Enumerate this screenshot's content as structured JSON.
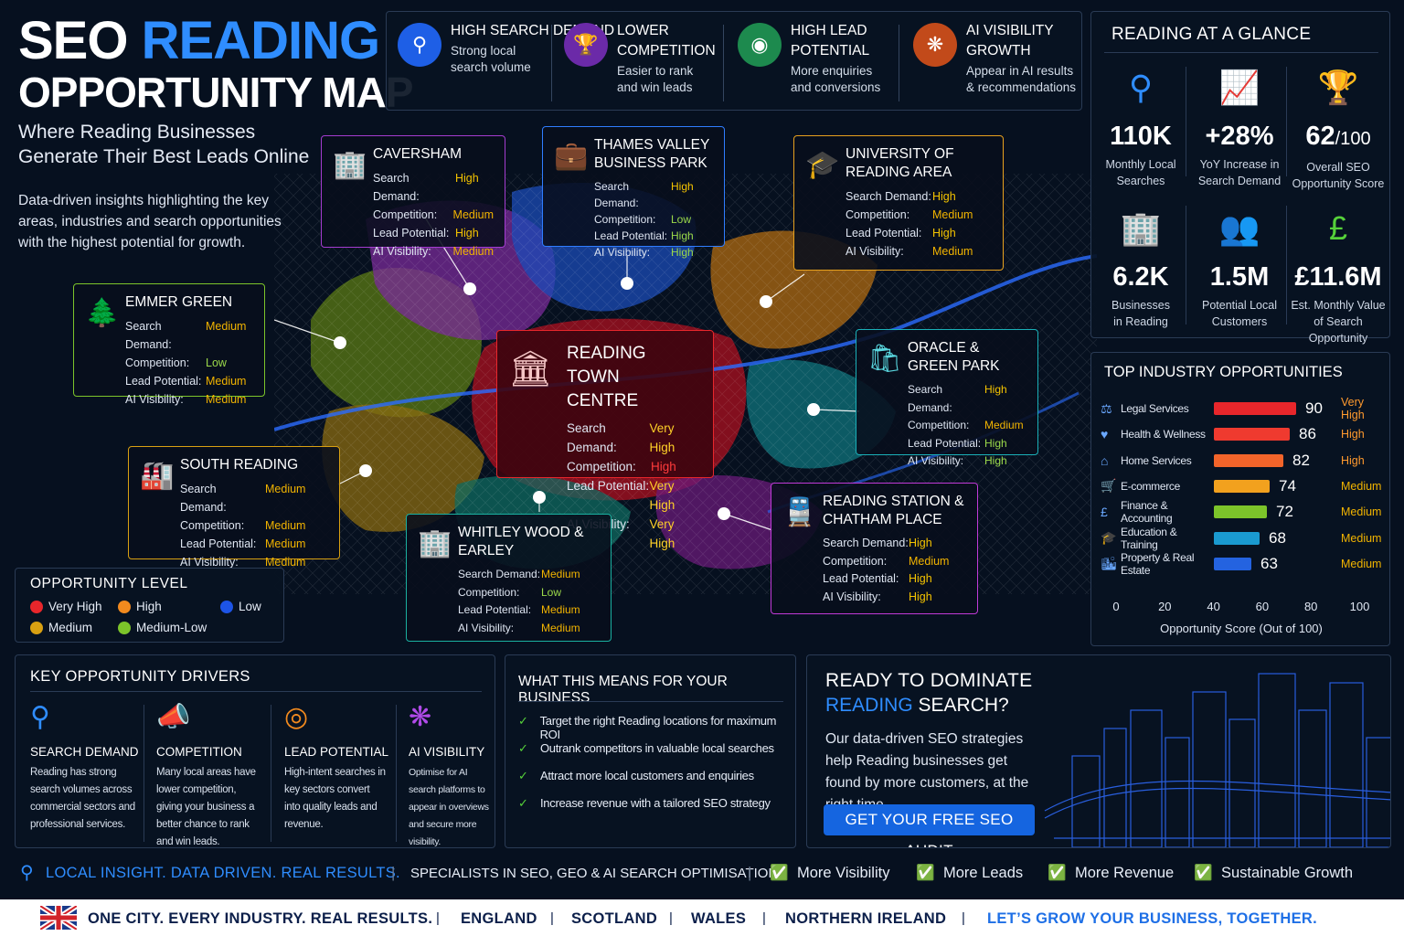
{
  "header": {
    "title_a": "SEO ",
    "title_b": "READING",
    "title_line2": "OPPORTUNITY MAP",
    "subtitle": "Where Reading Businesses Generate Their Best Leads Online",
    "intro": "Data-driven insights highlighting the key areas, industries and search opportunities with the highest potential for growth."
  },
  "features": [
    {
      "title": "HIGH SEARCH DEMAND",
      "desc": "Strong local search volume",
      "icon": "search-chart-icon",
      "color": "#1e5fe6"
    },
    {
      "title": "LOWER COMPETITION",
      "desc": "Easier to rank and win leads",
      "icon": "trophy-icon",
      "color": "#6b2aa8"
    },
    {
      "title": "HIGH LEAD POTENTIAL",
      "desc": "More enquiries and conversions",
      "icon": "target-icon",
      "color": "#1d8a4e"
    },
    {
      "title": "AI VISIBILITY GROWTH",
      "desc": "Appear in AI results & recommendations",
      "icon": "brain-icon",
      "color": "#c24a1a"
    }
  ],
  "labels": {
    "search_demand": "Search Demand:",
    "competition": "Competition:",
    "lead_potential": "Lead Potential:",
    "ai_visibility": "AI Visibility:"
  },
  "areas": {
    "caversham": {
      "name": "CAVERSHAM",
      "icon": "buildings-icon",
      "demand": "High",
      "competition": "Medium",
      "lead": "High",
      "ai": "Medium"
    },
    "thames": {
      "name": "THAMES VALLEY BUSINESS PARK",
      "icon": "briefcase-icon",
      "demand": "High",
      "competition": "Low",
      "lead": "High",
      "ai": "High"
    },
    "university": {
      "name": "UNIVERSITY OF READING AREA",
      "icon": "graduation-cap-icon",
      "demand": "High",
      "competition": "Medium",
      "lead": "High",
      "ai": "Medium"
    },
    "emmer": {
      "name": "EMMER GREEN",
      "icon": "tree-icon",
      "demand": "Medium",
      "competition": "Low",
      "lead": "Medium",
      "ai": "Medium"
    },
    "town": {
      "name": "READING TOWN CENTRE",
      "icon": "town-hall-icon",
      "demand": "Very High",
      "competition": "High",
      "lead": "Very High",
      "ai": "Very High"
    },
    "oracle": {
      "name": "ORACLE & GREEN PARK",
      "icon": "shopping-bag-icon",
      "demand": "High",
      "competition": "Medium",
      "lead": "High",
      "ai": "High"
    },
    "south": {
      "name": "SOUTH READING",
      "icon": "factory-icon",
      "demand": "Medium",
      "competition": "Medium",
      "lead": "Medium",
      "ai": "Medium"
    },
    "whitley": {
      "name": "WHITLEY WOOD & EARLEY",
      "icon": "apartment-icon",
      "demand": "Medium",
      "competition": "Low",
      "lead": "Medium",
      "ai": "Medium"
    },
    "station": {
      "name": "READING STATION & CHATHAM PLACE",
      "icon": "train-icon",
      "demand": "High",
      "competition": "Medium",
      "lead": "High",
      "ai": "High"
    }
  },
  "glance": {
    "title": "READING AT A GLANCE",
    "stats": [
      {
        "value": "110K",
        "suffix": "",
        "label": "Monthly Local Searches",
        "icon": "search-icon"
      },
      {
        "value": "+28%",
        "suffix": "",
        "label": "YoY Increase in Search Demand",
        "icon": "growth-chart-icon"
      },
      {
        "value": "62",
        "suffix": "/100",
        "label": "Overall SEO Opportunity Score",
        "icon": "trophy-icon"
      },
      {
        "value": "6.2K",
        "suffix": "",
        "label": "Businesses in Reading",
        "icon": "office-building-icon"
      },
      {
        "value": "1.5M",
        "suffix": "",
        "label": "Potential Local Customers",
        "icon": "people-icon"
      },
      {
        "value": "£11.6M",
        "suffix": "",
        "label": "Est. Monthly Value of Search Opportunity",
        "icon": "pound-coin-icon"
      }
    ]
  },
  "industry": {
    "title": "TOP INDUSTRY OPPORTUNITIES",
    "axis_label": "Opportunity Score (Out of 100)",
    "ticks": [
      "0",
      "20",
      "40",
      "60",
      "80",
      "100"
    ],
    "items": [
      {
        "label": "Legal Services",
        "score": 90,
        "rating": "Very High",
        "color": "#e8262b",
        "rcolor": "#ff9a2e",
        "icon": "scales-icon"
      },
      {
        "label": "Health & Wellness",
        "score": 86,
        "rating": "High",
        "color": "#ef3a2f",
        "rcolor": "#ff9a2e",
        "icon": "heart-icon"
      },
      {
        "label": "Home Services",
        "score": 82,
        "rating": "High",
        "color": "#f2642a",
        "rcolor": "#ff9a2e",
        "icon": "house-icon"
      },
      {
        "label": "E-commerce",
        "score": 74,
        "rating": "Medium",
        "color": "#f2a11e",
        "rcolor": "#f2b400",
        "icon": "cart-icon"
      },
      {
        "label": "Finance & Accounting",
        "score": 72,
        "rating": "Medium",
        "color": "#7cc42a",
        "rcolor": "#f2b400",
        "icon": "pound-icon"
      },
      {
        "label": "Education & Training",
        "score": 68,
        "rating": "Medium",
        "color": "#1a9ad0",
        "rcolor": "#f2b400",
        "icon": "graduation-cap-icon"
      },
      {
        "label": "Property & Real Estate",
        "score": 63,
        "rating": "Medium",
        "color": "#2463e0",
        "rcolor": "#f2b400",
        "icon": "city-icon"
      }
    ]
  },
  "legend": {
    "title": "OPPORTUNITY LEVEL",
    "items": [
      {
        "label": "Very High",
        "color": "#e8262b"
      },
      {
        "label": "High",
        "color": "#f28a1e"
      },
      {
        "label": "Low",
        "color": "#1d54e6"
      },
      {
        "label": "Medium",
        "color": "#d8a012"
      },
      {
        "label": "Medium-Low",
        "color": "#7cc42a"
      }
    ]
  },
  "drivers": {
    "title": "KEY OPPORTUNITY DRIVERS",
    "items": [
      {
        "title": "SEARCH DEMAND",
        "desc": "Reading has strong search volumes across commercial sectors and professional services.",
        "icon": "search-icon",
        "color": "#2f8dff"
      },
      {
        "title": "COMPETITION",
        "desc": "Many local areas have lower competition, giving your business a better chance to rank and win leads.",
        "icon": "megaphone-icon",
        "color": "#56d13a"
      },
      {
        "title": "LEAD POTENTIAL",
        "desc": "High-intent searches in key sectors convert into quality leads and revenue.",
        "icon": "target-icon",
        "color": "#f28a1e"
      },
      {
        "title": "AI VISIBILITY",
        "desc": "Optimise for AI search platforms to appear in overviews and secure more visibility.",
        "icon": "brain-icon",
        "color": "#b04ae8"
      }
    ]
  },
  "means": {
    "title": "WHAT THIS MEANS FOR YOUR BUSINESS",
    "items": [
      "Target the right Reading locations for maximum ROI",
      "Outrank competitors in valuable local searches",
      "Attract more local customers and enquiries",
      "Increase revenue with a tailored SEO strategy"
    ]
  },
  "cta": {
    "title1": "READY TO DOMINATE",
    "title2a": "READING",
    "title2b": " SEARCH?",
    "desc": "Our data-driven SEO strategies help Reading businesses get found by more customers, at the right time.",
    "button": "GET YOUR FREE SEO AUDIT"
  },
  "footer1": {
    "tagline": "LOCAL INSIGHT. DATA DRIVEN. REAL RESULTS.",
    "specialists": "SPECIALISTS IN SEO, GEO & AI SEARCH OPTIMISATION",
    "checks": [
      "More Visibility",
      "More Leads",
      "More Revenue",
      "Sustainable Growth"
    ]
  },
  "footer2": {
    "lead": "ONE CITY. EVERY INDUSTRY. REAL RESULTS.",
    "regions": [
      "ENGLAND",
      "SCOTLAND",
      "WALES",
      "NORTHERN IRELAND"
    ],
    "closing": "LET’S GROW YOUR BUSINESS, TOGETHER."
  }
}
